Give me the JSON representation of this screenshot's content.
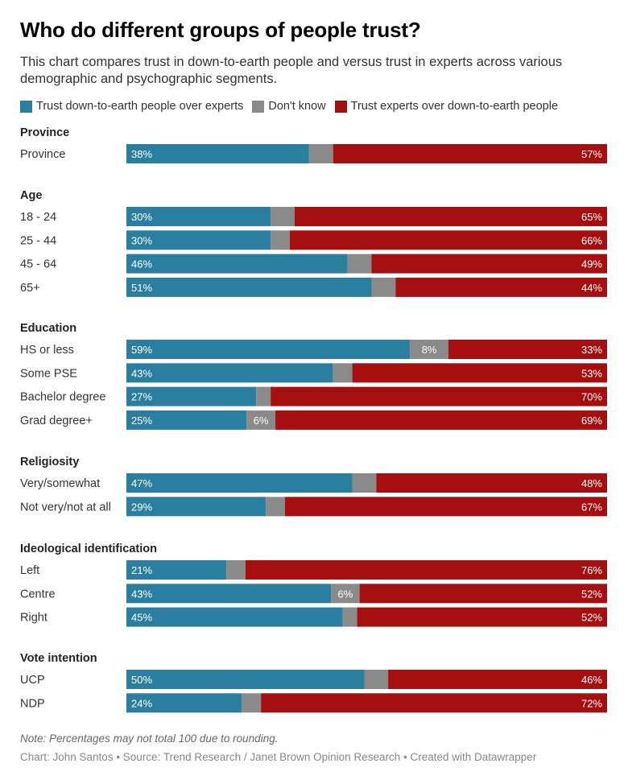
{
  "title": "Who do different groups of people trust?",
  "subtitle": "This chart compares trust in down-to-earth people and versus trust in experts across various demographic and psychographic segments.",
  "legend": [
    {
      "label": "Trust down-to-earth people over experts",
      "color": "#2a7fa1"
    },
    {
      "label": "Don't know",
      "color": "#8a8a8a"
    },
    {
      "label": "Trust experts over down-to-earth people",
      "color": "#a50f0f"
    }
  ],
  "note": "Note: Percentages may not total 100 due to rounding.",
  "source": "Chart: John Santos • Source: Trend Research / Janet Brown Opinion Research • Created with Datawrapper",
  "chart_data": {
    "type": "bar",
    "orientation": "horizontal",
    "stacked": true,
    "normalized_to": 100,
    "series_names": [
      "Trust down-to-earth people over experts",
      "Don't know",
      "Trust experts over down-to-earth people"
    ],
    "colors": [
      "#2a7fa1",
      "#8a8a8a",
      "#a50f0f"
    ],
    "groups": [
      {
        "name": "Province",
        "rows": [
          {
            "label": "Province",
            "values": [
              38,
              5,
              57
            ],
            "labels": [
              "38%",
              "",
              "57%"
            ]
          }
        ]
      },
      {
        "name": "Age",
        "rows": [
          {
            "label": "18 - 24",
            "values": [
              30,
              5,
              65
            ],
            "labels": [
              "30%",
              "",
              "65%"
            ]
          },
          {
            "label": "25 - 44",
            "values": [
              30,
              4,
              66
            ],
            "labels": [
              "30%",
              "",
              "66%"
            ]
          },
          {
            "label": "45 - 64",
            "values": [
              46,
              5,
              49
            ],
            "labels": [
              "46%",
              "",
              "49%"
            ]
          },
          {
            "label": "65+",
            "values": [
              51,
              5,
              44
            ],
            "labels": [
              "51%",
              "",
              "44%"
            ]
          }
        ]
      },
      {
        "name": "Education",
        "rows": [
          {
            "label": "HS or less",
            "values": [
              59,
              8,
              33
            ],
            "labels": [
              "59%",
              "8%",
              "33%"
            ]
          },
          {
            "label": "Some PSE",
            "values": [
              43,
              4,
              53
            ],
            "labels": [
              "43%",
              "",
              "53%"
            ]
          },
          {
            "label": "Bachelor degree",
            "values": [
              27,
              3,
              70
            ],
            "labels": [
              "27%",
              "",
              "70%"
            ]
          },
          {
            "label": "Grad degree+",
            "values": [
              25,
              6,
              69
            ],
            "labels": [
              "25%",
              "6%",
              "69%"
            ]
          }
        ]
      },
      {
        "name": "Religiosity",
        "rows": [
          {
            "label": "Very/somewhat",
            "values": [
              47,
              5,
              48
            ],
            "labels": [
              "47%",
              "",
              "48%"
            ]
          },
          {
            "label": "Not very/not at all",
            "values": [
              29,
              4,
              67
            ],
            "labels": [
              "29%",
              "",
              "67%"
            ]
          }
        ]
      },
      {
        "name": "Ideological identification",
        "rows": [
          {
            "label": "Left",
            "values": [
              21,
              4,
              76
            ],
            "labels": [
              "21%",
              "",
              "76%"
            ]
          },
          {
            "label": "Centre",
            "values": [
              43,
              6,
              52
            ],
            "labels": [
              "43%",
              "6%",
              "52%"
            ]
          },
          {
            "label": "Right",
            "values": [
              45,
              3,
              52
            ],
            "labels": [
              "45%",
              "",
              "52%"
            ]
          }
        ]
      },
      {
        "name": "Vote intention",
        "rows": [
          {
            "label": "UCP",
            "values": [
              50,
              5,
              46
            ],
            "labels": [
              "50%",
              "",
              "46%"
            ]
          },
          {
            "label": "NDP",
            "values": [
              24,
              4,
              72
            ],
            "labels": [
              "24%",
              "",
              "72%"
            ]
          }
        ]
      }
    ]
  }
}
